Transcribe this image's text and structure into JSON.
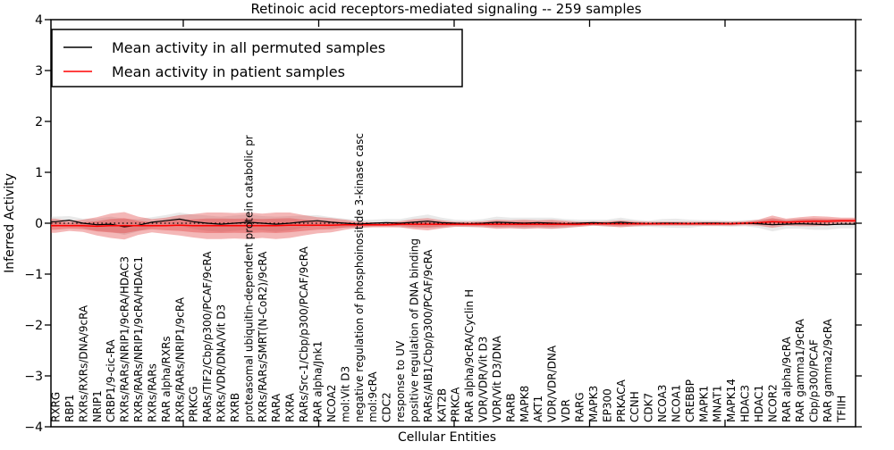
{
  "chart_data": {
    "type": "line",
    "title": "Retinoic acid receptors-mediated signaling -- 259 samples",
    "xlabel": "Cellular Entities",
    "ylabel": "Inferred Activity",
    "ylim": [
      -4,
      4
    ],
    "y_ticks": [
      4,
      3,
      2,
      1,
      0,
      -1,
      -2,
      -3,
      -4
    ],
    "grid": false,
    "legend_position": "upper left",
    "zero_line_style": "dotted",
    "colors": {
      "permuted_line": "#000000",
      "patient_line": "#ff0000",
      "patient_band": "#e03030",
      "permuted_band": "#999999"
    },
    "legend": [
      {
        "label": "Mean activity in all permuted samples",
        "color": "#000000"
      },
      {
        "label": "Mean activity in patient samples",
        "color": "#ff0000"
      }
    ],
    "categories": [
      "RXRG",
      "RBP1",
      "RXRs/RXRs/DNA/9cRA",
      "NRIP1",
      "CRBP1/9-cic-RA",
      "RXRs/RARs/NRIP1/9cRA/HDAC3",
      "RXRs/RARs/NRIP1/9cRA/HDAC1",
      "RXRs/RARs",
      "RAR alpha/RXRs",
      "RXRs/RARs/NRIP1/9cRA",
      "PRKCG",
      "RARs/TIF2/Cbp/p300/PCAF/9cRA",
      "RXRs/VDR/DNA/Vit D3",
      "RXRB",
      "proteasomal ubiquitin-dependent protein catabolic pr",
      "RXRs/RARs/SMRT(N-CoR2)/9cRA",
      "RARA",
      "RXRA",
      "RARs/Src-1/Cbp/p300/PCAF/9cRA",
      "RAR alpha/Jnk1",
      "NCOA2",
      "mol:Vit D3",
      "negative regulation of phosphoinositide 3-kinase casc",
      "mol:9cRA",
      "CDC2",
      "response to UV",
      "positive regulation of DNA binding",
      "RARs/AIB1/Cbp/p300/PCAF/9cRA",
      "KAT2B",
      "PRKCA",
      "RAR alpha/9cRA/Cyclin H",
      "VDR/VDR/Vit D3",
      "VDR/Vit D3/DNA",
      "RARB",
      "MAPK8",
      "AKT1",
      "VDR/VDR/DNA",
      "VDR",
      "RARG",
      "MAPK3",
      "EP300",
      "PRKACA",
      "CCNH",
      "CDK7",
      "NCOA3",
      "NCOA1",
      "CREBBP",
      "MAPK1",
      "MNAT1",
      "MAPK14",
      "HDAC3",
      "HDAC1",
      "NCOR2",
      "RAR alpha/9cRA",
      "RAR gamma1/9cRA",
      "Cbp/p300/PCAF",
      "RAR gamma2/9cRA",
      "TFIIH"
    ],
    "series": [
      {
        "name": "Mean activity in all permuted samples",
        "values": [
          0.03,
          0.06,
          0.0,
          -0.03,
          -0.02,
          -0.07,
          -0.04,
          0.02,
          0.05,
          0.08,
          0.03,
          0.0,
          -0.02,
          0.0,
          0.02,
          0.0,
          -0.02,
          0.0,
          0.03,
          0.05,
          0.02,
          0.0,
          -0.02,
          0.0,
          0.01,
          0.0,
          0.02,
          0.04,
          0.01,
          0.0,
          -0.01,
          0.0,
          0.02,
          0.01,
          0.0,
          0.01,
          0.0,
          -0.01,
          0.0,
          0.01,
          0.0,
          0.02,
          0.0,
          -0.01,
          0.0,
          0.0,
          -0.01,
          0.0,
          0.0,
          -0.01,
          0.0,
          -0.01,
          -0.03,
          -0.02,
          -0.01,
          -0.02,
          -0.03,
          -0.02
        ],
        "std": [
          0.1,
          0.08,
          0.09,
          0.12,
          0.15,
          0.16,
          0.12,
          0.1,
          0.11,
          0.13,
          0.14,
          0.15,
          0.15,
          0.15,
          0.15,
          0.14,
          0.15,
          0.14,
          0.12,
          0.11,
          0.1,
          0.09,
          0.08,
          0.07,
          0.07,
          0.08,
          0.11,
          0.13,
          0.1,
          0.07,
          0.07,
          0.08,
          0.11,
          0.1,
          0.11,
          0.1,
          0.11,
          0.09,
          0.07,
          0.06,
          0.07,
          0.09,
          0.07,
          0.06,
          0.08,
          0.09,
          0.08,
          0.06,
          0.06,
          0.06,
          0.06,
          0.08,
          0.13,
          0.09,
          0.1,
          0.11,
          0.1,
          0.08
        ]
      },
      {
        "name": "Mean activity in patient samples",
        "values": [
          -0.05,
          -0.05,
          -0.05,
          -0.06,
          -0.05,
          -0.05,
          -0.05,
          -0.05,
          -0.05,
          -0.04,
          -0.05,
          -0.05,
          -0.05,
          -0.05,
          -0.05,
          -0.05,
          -0.05,
          -0.04,
          -0.04,
          -0.04,
          -0.04,
          -0.03,
          -0.03,
          -0.03,
          -0.03,
          -0.02,
          -0.02,
          -0.02,
          -0.02,
          -0.02,
          -0.02,
          -0.02,
          -0.02,
          -0.02,
          -0.02,
          -0.02,
          -0.02,
          -0.02,
          -0.02,
          -0.01,
          -0.01,
          -0.01,
          -0.01,
          -0.01,
          -0.01,
          -0.01,
          -0.01,
          -0.01,
          -0.01,
          -0.01,
          0.0,
          0.01,
          0.03,
          0.02,
          0.03,
          0.04,
          0.04,
          0.05
        ],
        "std": [
          0.14,
          0.1,
          0.12,
          0.18,
          0.24,
          0.27,
          0.18,
          0.13,
          0.16,
          0.2,
          0.23,
          0.26,
          0.26,
          0.25,
          0.26,
          0.24,
          0.26,
          0.25,
          0.2,
          0.16,
          0.14,
          0.1,
          0.06,
          0.05,
          0.05,
          0.06,
          0.1,
          0.12,
          0.08,
          0.05,
          0.05,
          0.06,
          0.09,
          0.08,
          0.09,
          0.08,
          0.09,
          0.07,
          0.05,
          0.04,
          0.05,
          0.07,
          0.05,
          0.04,
          0.04,
          0.04,
          0.04,
          0.04,
          0.04,
          0.04,
          0.04,
          0.06,
          0.12,
          0.07,
          0.09,
          0.1,
          0.09,
          0.06
        ]
      }
    ]
  }
}
